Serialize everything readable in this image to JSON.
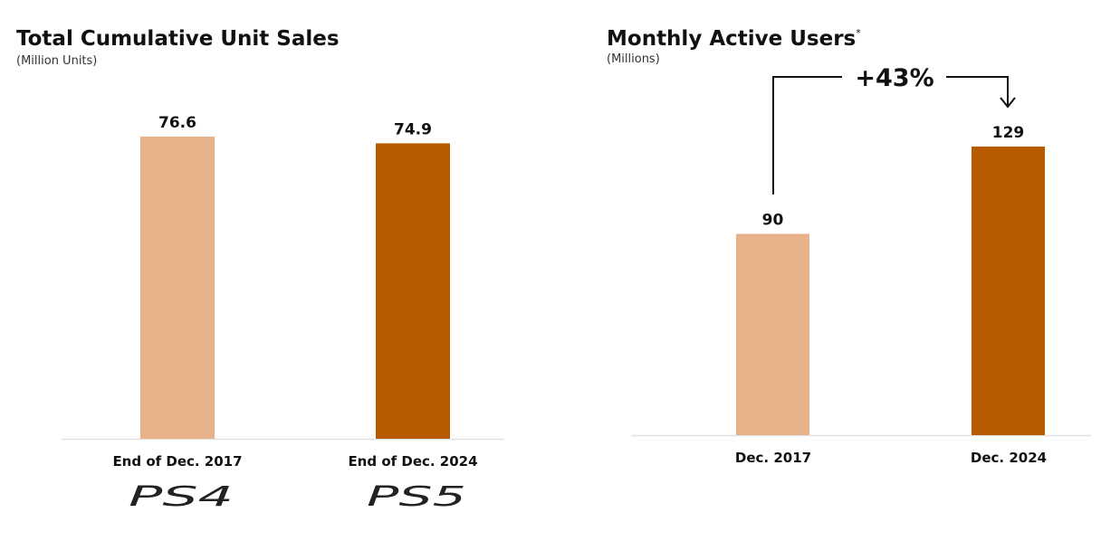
{
  "chart_data": [
    {
      "type": "bar",
      "title": "Total Cumulative Unit Sales",
      "subtitle": "(Million Units)",
      "categories": [
        "End of Dec. 2017",
        "End of Dec. 2024"
      ],
      "category_logos": [
        "PS4",
        "PS5"
      ],
      "values": [
        76.6,
        74.9
      ],
      "value_labels": [
        "76.6",
        "74.9"
      ],
      "colors": [
        "#E8B38A",
        "#B85A00"
      ],
      "ylim": [
        0,
        80
      ],
      "grid": false
    },
    {
      "type": "bar",
      "title": "Monthly Active Users",
      "title_footnote_mark": "*",
      "subtitle": "(Millions)",
      "categories": [
        "Dec. 2017",
        "Dec. 2024"
      ],
      "values": [
        90,
        129
      ],
      "value_labels": [
        "90",
        "129"
      ],
      "colors": [
        "#E8B38A",
        "#B85A00"
      ],
      "ylim": [
        0,
        135
      ],
      "grid": false,
      "annotation": "+43%"
    }
  ]
}
